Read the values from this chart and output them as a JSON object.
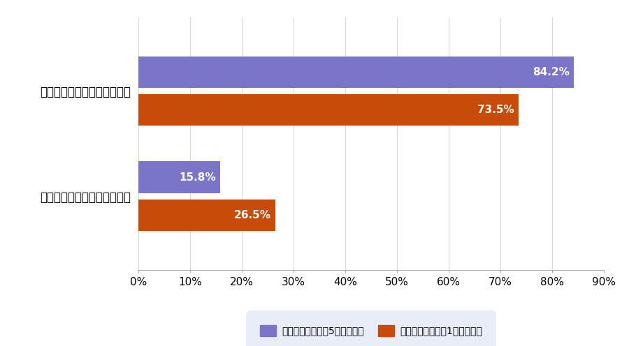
{
  "categories": [
    "利益が出ていると回答した人",
    "損失が出ていると回答した人"
  ],
  "series_5year": [
    84.2,
    15.8
  ],
  "series_1year": [
    73.5,
    26.5
  ],
  "color_5year": "#7B75C9",
  "color_1year": "#C84B0A",
  "label_5year": "投信積立を続けて5年以上の人",
  "label_1year": "投信積立を続けて1年未満の人",
  "xlim": [
    0,
    90
  ],
  "xtick_values": [
    0,
    10,
    20,
    30,
    40,
    50,
    60,
    70,
    80,
    90
  ],
  "xtick_labels": [
    "0%",
    "10%",
    "20%",
    "30%",
    "40%",
    "50%",
    "60%",
    "70%",
    "80%",
    "90%"
  ],
  "background_color": "#FFFFFF",
  "legend_bg_color": "#E4E9F5",
  "bar_height": 0.3,
  "bar_gap": 0.06,
  "bar_label_fontsize": 11,
  "tick_label_fontsize": 11,
  "ylabel_fontsize": 12,
  "legend_fontsize": 11,
  "grid_color": "#D8D8D8"
}
